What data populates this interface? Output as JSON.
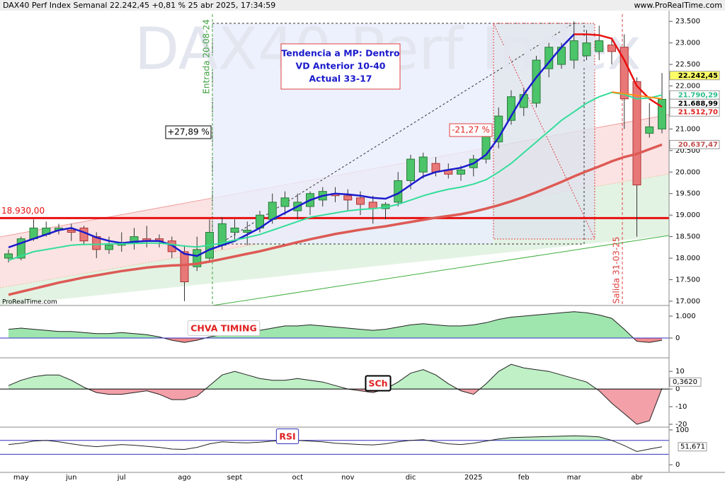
{
  "header": {
    "title": "DAX40 Perf Index Semanal 22.242,45 +0,81 % 25 abr 2025, 17:34:59",
    "site": "www.ProRealTime.com"
  },
  "chart_data": [
    {
      "type": "candlestick",
      "watermark": "DAX40 Perf Index",
      "source": "ProRealTime.com",
      "categories": [
        null,
        "may",
        null,
        null,
        null,
        "jun",
        null,
        null,
        null,
        "jul",
        null,
        null,
        null,
        null,
        "ago",
        null,
        null,
        null,
        "sept",
        null,
        null,
        null,
        null,
        "oct",
        null,
        null,
        null,
        "nov",
        null,
        null,
        null,
        null,
        "dic",
        null,
        null,
        null,
        null,
        "2025",
        null,
        null,
        null,
        "feb",
        null,
        null,
        null,
        "mar",
        null,
        null,
        null,
        null,
        "abr",
        null,
        null
      ],
      "open": [
        18000,
        18000,
        18450,
        18550,
        18650,
        18650,
        18700,
        18500,
        18200,
        18300,
        18350,
        18450,
        18450,
        18400,
        18150,
        17800,
        18000,
        18300,
        18600,
        18600,
        18700,
        18900,
        19200,
        19100,
        19200,
        19350,
        19500,
        19450,
        19400,
        19300,
        19150,
        19300,
        19800,
        20000,
        20200,
        20050,
        19950,
        20100,
        20300,
        20700,
        21200,
        21500,
        21600,
        22400,
        22500,
        22600,
        22700,
        22800,
        22950,
        22900,
        22100,
        20900,
        21000
      ],
      "high": [
        18200,
        18500,
        18900,
        18850,
        18800,
        18800,
        18750,
        18600,
        18500,
        18600,
        18700,
        18750,
        18550,
        18500,
        18300,
        18500,
        18900,
        18950,
        18900,
        18850,
        19100,
        19500,
        19550,
        19500,
        19550,
        19650,
        19650,
        19600,
        19550,
        19450,
        19300,
        20000,
        20400,
        20450,
        20350,
        20200,
        20150,
        20400,
        20900,
        21500,
        21900,
        21950,
        22700,
        23000,
        23000,
        23500,
        23300,
        23400,
        23100,
        23200,
        22200,
        21600,
        22300
      ],
      "low": [
        17900,
        17950,
        18400,
        18500,
        18550,
        18400,
        18300,
        18000,
        18100,
        18150,
        18200,
        18250,
        18250,
        18000,
        17000,
        17700,
        17900,
        18200,
        18400,
        18300,
        18600,
        18800,
        19000,
        18900,
        19000,
        19200,
        19300,
        19100,
        19000,
        18800,
        18900,
        19200,
        19600,
        19850,
        19900,
        19850,
        19800,
        19900,
        20200,
        20550,
        21100,
        21300,
        21500,
        22200,
        22400,
        22400,
        22600,
        22600,
        22500,
        21000,
        18500,
        20800,
        20900
      ],
      "close": [
        18100,
        18450,
        18700,
        18700,
        18700,
        18600,
        18400,
        18200,
        18300,
        18350,
        18500,
        18400,
        18400,
        18150,
        17450,
        18200,
        18600,
        18800,
        18700,
        18650,
        19000,
        19300,
        19400,
        19300,
        19500,
        19550,
        19450,
        19350,
        19250,
        19150,
        19250,
        19800,
        20300,
        20350,
        20000,
        19950,
        20050,
        20300,
        20850,
        21300,
        21750,
        21800,
        22600,
        22900,
        22900,
        23050,
        23000,
        23050,
        22800,
        21700,
        19700,
        21050,
        21688.99
      ],
      "up_color": "#4cc46a",
      "down_color": "#e87878",
      "series": [
        {
          "color": "#1a1acc",
          "values": [
            18250,
            18350,
            18450,
            18550,
            18650,
            18700,
            18600,
            18480,
            18400,
            18350,
            18380,
            18400,
            18400,
            18300,
            18100,
            18050,
            18200,
            18300,
            18400,
            18550,
            18700,
            18900,
            19050,
            19200,
            19350,
            19450,
            19500,
            19480,
            19450,
            19400,
            19380,
            19500,
            19700,
            19900,
            20000,
            20050,
            20100,
            20200,
            20400,
            20800,
            21300,
            21800,
            22200,
            22550,
            22900,
            23200,
            null,
            null,
            null,
            null,
            null,
            null,
            null
          ]
        },
        {
          "color": "#e81010",
          "values": [
            null,
            null,
            null,
            null,
            null,
            null,
            null,
            null,
            null,
            null,
            null,
            null,
            null,
            null,
            null,
            null,
            null,
            null,
            null,
            null,
            null,
            null,
            null,
            null,
            null,
            null,
            null,
            null,
            null,
            null,
            null,
            null,
            null,
            null,
            null,
            null,
            null,
            null,
            null,
            null,
            null,
            null,
            null,
            null,
            null,
            23200,
            23200,
            23180,
            23100,
            22600,
            22000,
            21700,
            21512.7
          ]
        },
        {
          "color": "#33dd99",
          "values": [
            17950,
            18050,
            18150,
            18200,
            18250,
            18300,
            18320,
            18320,
            18330,
            18330,
            18340,
            18350,
            18350,
            18320,
            18280,
            18260,
            18300,
            18350,
            18420,
            18480,
            18550,
            18650,
            18750,
            18850,
            18950,
            19000,
            19050,
            19100,
            19130,
            19150,
            19180,
            19250,
            19350,
            19450,
            19530,
            19600,
            19650,
            19720,
            19820,
            20000,
            20200,
            20450,
            20700,
            20950,
            21200,
            21400,
            21600,
            21750,
            21850,
            21800,
            21700,
            21720,
            21790.29
          ]
        },
        {
          "color": "#dd5a55",
          "values": [
            17150,
            17220,
            17290,
            17360,
            17430,
            17490,
            17550,
            17600,
            17650,
            17700,
            17740,
            17780,
            17810,
            17830,
            17840,
            17870,
            17920,
            17980,
            18040,
            18100,
            18160,
            18230,
            18300,
            18370,
            18440,
            18500,
            18560,
            18610,
            18660,
            18700,
            18740,
            18790,
            18840,
            18890,
            18940,
            18980,
            19020,
            19080,
            19150,
            19230,
            19320,
            19420,
            19530,
            19650,
            19770,
            19900,
            20020,
            20130,
            20250,
            20350,
            20420,
            20530,
            20637.47
          ]
        },
        {
          "color": "#ff8c1a",
          "values": [
            null,
            null,
            null,
            null,
            null,
            null,
            null,
            null,
            null,
            null,
            null,
            null,
            null,
            null,
            null,
            null,
            null,
            null,
            null,
            null,
            null,
            null,
            null,
            null,
            null,
            null,
            null,
            null,
            null,
            null,
            null,
            null,
            null,
            null,
            null,
            null,
            null,
            null,
            null,
            null,
            null,
            null,
            null,
            null,
            null,
            null,
            null,
            null,
            21860,
            21820,
            21780,
            21740,
            21700
          ]
        }
      ],
      "ylim": [
        16900,
        23750
      ],
      "yticks": [
        {
          "value": 17000,
          "label": "17.000"
        },
        {
          "value": 17500,
          "label": "17.500"
        },
        {
          "value": 18000,
          "label": "18.000"
        },
        {
          "value": 18500,
          "label": "18.500"
        },
        {
          "value": 19000,
          "label": "19.000"
        },
        {
          "value": 19500,
          "label": "19.500"
        },
        {
          "value": 20000,
          "label": "20.000"
        },
        {
          "value": 20500,
          "label": "20.500"
        },
        {
          "value": 21000,
          "label": "21.000"
        },
        {
          "value": 21500,
          "label": "21.500"
        },
        {
          "value": 22000,
          "label": "22.000"
        },
        {
          "value": 22500,
          "label": "22.500"
        },
        {
          "value": 23000,
          "label": "23.000"
        },
        {
          "value": 23500,
          "label": "23.500"
        }
      ],
      "hlines": [
        {
          "value": 18930,
          "label": "18.930,00",
          "color": "#e81010"
        }
      ],
      "price_labels": [
        {
          "value": 22242.45,
          "label": "22.242,45",
          "color": "#000000",
          "background": "#ffff66"
        },
        {
          "value": 21790.29,
          "label": "21.790,29",
          "color": "#2bbf8a",
          "background": "#ffffff"
        },
        {
          "value": 21688.99,
          "label": "21.688,99",
          "color": "#000000",
          "background": "#ffffff"
        },
        {
          "value": 21512.7,
          "label": "21.512,70",
          "color": "#e02020",
          "background": "#ffffff"
        },
        {
          "value": 20637.47,
          "label": "20.637,47",
          "color": "#c05050",
          "background": "#ffffff"
        }
      ],
      "annotations": {
        "box": [
          "Tendencia a MP: Dentro",
          "VD Anterior 10-40",
          "Actual 33-17"
        ],
        "gain": "+27,89 %",
        "loss": "-21,27 %",
        "entry": "Entrada 20-08-24",
        "exit": "Salida 31-03-25"
      }
    },
    {
      "type": "area",
      "label": "CHVA TIMING",
      "values": [
        0.4,
        0.45,
        0.4,
        0.35,
        0.3,
        0.3,
        0.25,
        0.2,
        0.2,
        0.25,
        0.2,
        0.15,
        0.05,
        -0.1,
        -0.2,
        -0.1,
        0.05,
        0.15,
        0.25,
        0.3,
        0.35,
        0.45,
        0.55,
        0.55,
        0.6,
        0.55,
        0.5,
        0.45,
        0.4,
        0.35,
        0.4,
        0.5,
        0.6,
        0.65,
        0.6,
        0.55,
        0.55,
        0.6,
        0.7,
        0.85,
        0.95,
        1.0,
        1.05,
        1.1,
        1.15,
        1.2,
        1.15,
        1.05,
        0.9,
        0.4,
        -0.15,
        -0.2,
        -0.1
      ],
      "ylim": [
        -0.87,
        1.45
      ],
      "yticks": [
        0,
        {
          "value": 1,
          "label": "1.000"
        }
      ],
      "zero_color": "#3030c0",
      "pos_color": "#9fe6ae",
      "neg_color": "#f08a8a"
    },
    {
      "type": "area",
      "label": "SCh",
      "values": [
        2,
        5,
        7,
        8,
        8,
        5,
        1,
        -2,
        -3,
        -3,
        -2,
        -1,
        -3,
        -6,
        -6,
        -4,
        2,
        8,
        10,
        8,
        6,
        5,
        5,
        6,
        5,
        4,
        2,
        0,
        -1,
        -2,
        0,
        4,
        9,
        11,
        8,
        3,
        -1,
        -3,
        3,
        10,
        14,
        12,
        11,
        10,
        8,
        6,
        4,
        -1,
        -8,
        -14,
        -20,
        -18,
        0.362
      ],
      "last_label": {
        "value": 0.362,
        "label": "0,3620"
      },
      "ylim": [
        -21.2,
        17.3
      ],
      "yticks": [
        -20,
        -10,
        0,
        10
      ],
      "zero_color": "#000000",
      "pos_color": "#bff0c6",
      "neg_color": "#f3a0a8"
    },
    {
      "type": "line",
      "label": "RSI",
      "values": [
        58,
        62,
        68,
        70,
        66,
        60,
        55,
        52,
        55,
        58,
        56,
        53,
        50,
        45,
        44,
        50,
        60,
        66,
        64,
        63,
        65,
        68,
        70,
        70,
        68,
        66,
        62,
        60,
        58,
        57,
        60,
        66,
        70,
        72,
        66,
        60,
        58,
        62,
        68,
        74,
        78,
        79,
        80,
        81,
        82,
        83,
        82,
        80,
        70,
        55,
        38,
        45,
        51.671
      ],
      "last_label": {
        "value": 51.671,
        "label": "51,671"
      },
      "levels": [
        70,
        30
      ],
      "ylim": [
        -22,
        106
      ],
      "yticks": [
        0,
        100
      ],
      "level_color": "#3030c0",
      "pos_color": "#bff0c6"
    }
  ]
}
